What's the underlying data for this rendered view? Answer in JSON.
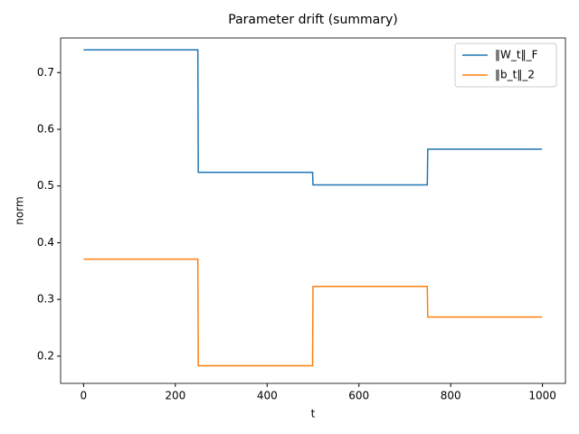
{
  "chart_data": {
    "type": "line",
    "title": "Parameter drift (summary)",
    "xlabel": "t",
    "ylabel": "norm",
    "x": [
      0,
      249,
      250,
      499,
      500,
      749,
      750,
      999
    ],
    "series": [
      {
        "name": "‖W_t‖_F",
        "color": "#1f77b4",
        "values": [
          0.74,
          0.74,
          0.524,
          0.524,
          0.502,
          0.502,
          0.565,
          0.565
        ]
      },
      {
        "name": "‖b_t‖_2",
        "color": "#ff7f0e",
        "values": [
          0.371,
          0.371,
          0.183,
          0.183,
          0.323,
          0.323,
          0.269,
          0.269
        ]
      }
    ],
    "xlim": [
      -50,
      1050
    ],
    "xticks": [
      0,
      200,
      400,
      600,
      800,
      1000
    ],
    "ylim": [
      0.152,
      0.761
    ],
    "yticks": [
      0.2,
      0.3,
      0.4,
      0.5,
      0.6,
      0.7
    ],
    "legend": "upper right"
  }
}
